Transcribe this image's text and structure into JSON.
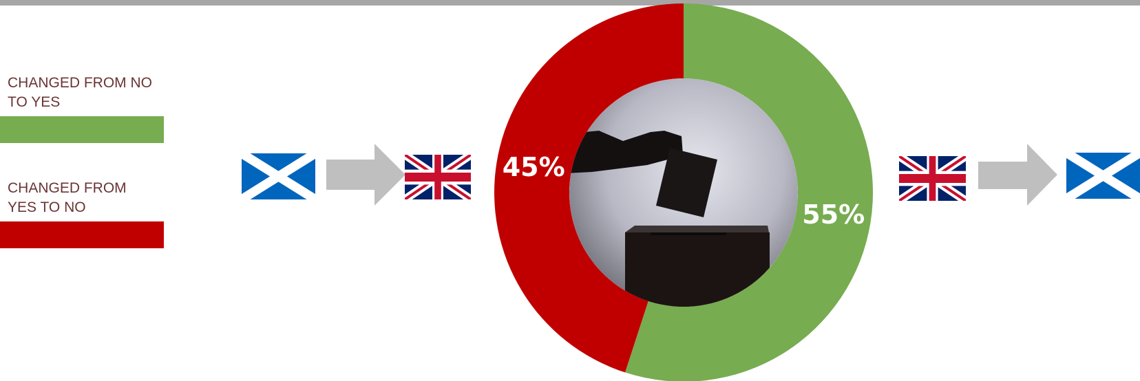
{
  "chart_data": {
    "type": "donut",
    "categories": [
      "CHANGED FROM NO TO YES",
      "CHANGED FROM YES TO NO"
    ],
    "values": [
      55,
      45
    ],
    "value_labels": [
      "55%",
      "45%"
    ],
    "colors": [
      "#77ac50",
      "#c00000"
    ]
  }
}
